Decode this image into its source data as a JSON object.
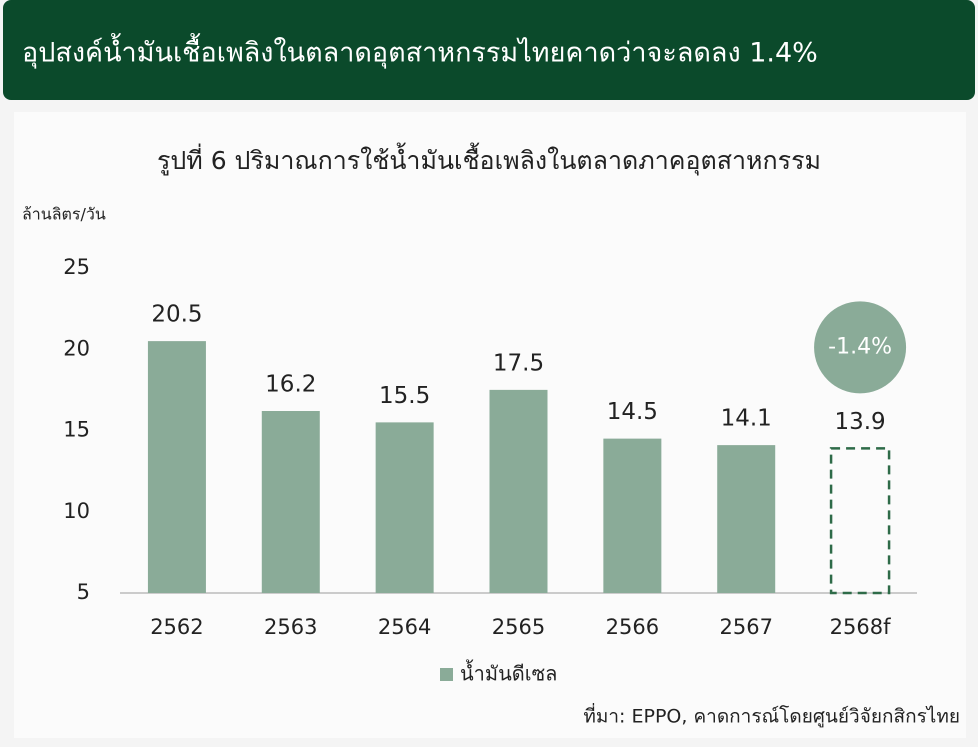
{
  "header_title": "อุปสงค์น้ำมันเชื้อเพลิงในตลาดอุตสาหกรรมไทยคาดว่าจะลดลง 1.4%",
  "chart_data": {
    "type": "bar",
    "title": "รูปที่ 6 ปริมาณการใช้น้ำมันเชื้อเพลิงในตลาดภาคอุตสาหกรรม",
    "y_label": "ล้านลิตร/วัน",
    "categories": [
      "2562",
      "2563",
      "2564",
      "2565",
      "2566",
      "2567",
      "2568f"
    ],
    "series": [
      {
        "name": "น้ำมันดีเซล",
        "color": "#8aab98",
        "values": [
          20.5,
          16.2,
          15.5,
          17.5,
          14.5,
          14.1,
          13.9
        ]
      }
    ],
    "ylim": [
      5,
      25
    ],
    "yticks": [
      5,
      10,
      15,
      20,
      25
    ],
    "grid": false,
    "annotation": "-1.4%",
    "source": "ที่มา: EPPO, คาดการณ์โดยศูนย์วิจัยกสิกรไทย"
  }
}
